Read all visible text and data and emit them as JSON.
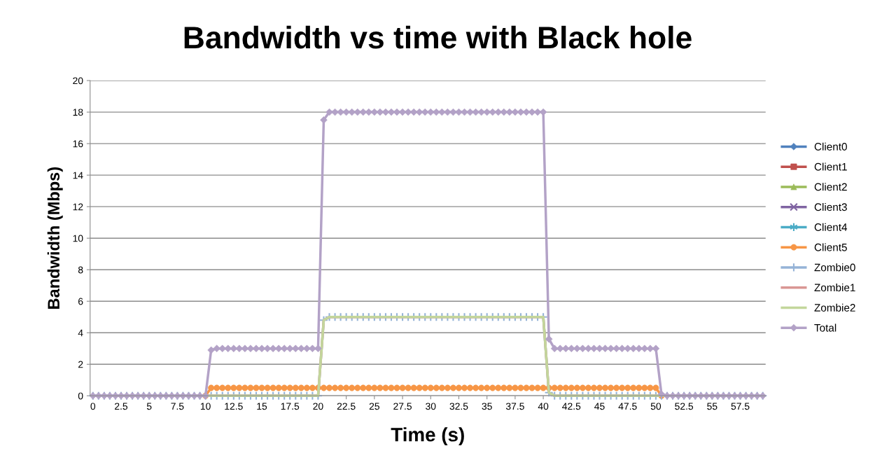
{
  "chart_data": {
    "type": "line",
    "title": "Bandwidth vs time with Black hole",
    "xlabel": "Time (s)",
    "ylabel": "Bandwidth (Mbps)",
    "categories": [
      "0",
      null,
      null,
      null,
      null,
      "2.5",
      null,
      null,
      null,
      null,
      "5",
      null,
      null,
      null,
      null,
      "7.5",
      null,
      null,
      null,
      null,
      "10",
      null,
      null,
      null,
      null,
      "12.5",
      null,
      null,
      null,
      null,
      "15",
      null,
      null,
      null,
      null,
      "17.5",
      null,
      null,
      null,
      null,
      "20",
      null,
      null,
      null,
      null,
      "22.5",
      null,
      null,
      null,
      null,
      "25",
      null,
      null,
      null,
      null,
      "27.5",
      null,
      null,
      null,
      null,
      "30",
      null,
      null,
      null,
      null,
      "32.5",
      null,
      null,
      null,
      null,
      "35",
      null,
      null,
      null,
      null,
      "37.5",
      null,
      null,
      null,
      null,
      "40",
      null,
      null,
      null,
      null,
      "42.5",
      null,
      null,
      null,
      null,
      "45",
      null,
      null,
      null,
      null,
      "47.5",
      null,
      null,
      null,
      null,
      "50",
      null,
      null,
      null,
      null,
      "52.5",
      null,
      null,
      null,
      null,
      "55",
      null,
      null,
      null,
      null,
      "57.5",
      null,
      null,
      null,
      null
    ],
    "ylim": [
      0,
      20
    ],
    "yticks": [
      0,
      2,
      4,
      6,
      8,
      10,
      12,
      14,
      16,
      18,
      20
    ],
    "grid": "y",
    "legend": "right",
    "line_style": "solid",
    "series": [
      {
        "name": "Client0",
        "color": "#4f81bd",
        "marker": "diamond",
        "values": [
          null,
          null,
          null,
          null,
          null,
          null,
          null,
          null,
          null,
          null,
          null,
          null,
          null,
          null,
          null,
          null,
          null,
          null,
          null,
          null,
          null,
          null,
          null,
          null,
          null,
          null,
          null,
          null,
          null,
          null,
          null,
          null,
          null,
          null,
          null,
          null,
          null,
          null,
          null,
          null,
          null,
          null,
          null,
          null,
          null,
          null,
          null,
          null,
          null,
          null,
          null,
          null,
          null,
          null,
          null,
          null,
          null,
          null,
          null,
          null,
          null,
          null,
          null,
          null,
          null,
          null,
          null,
          null,
          null,
          null,
          null,
          null,
          null,
          null,
          null,
          null,
          null,
          null,
          null,
          null,
          null,
          null,
          null,
          null,
          null,
          null,
          null,
          null,
          null,
          null,
          null,
          null,
          null,
          null,
          null,
          null,
          null,
          null,
          null,
          null,
          null,
          null,
          null,
          null,
          null,
          null,
          null,
          null,
          null,
          null,
          null,
          null,
          null,
          null,
          null,
          null,
          null,
          null,
          null,
          null
        ]
      },
      {
        "name": "Client1",
        "color": "#c0504d",
        "marker": "square",
        "values": [
          null,
          null,
          null,
          null,
          null,
          null,
          null,
          null,
          null,
          null,
          null,
          null,
          null,
          null,
          null,
          null,
          null,
          null,
          null,
          null,
          null,
          null,
          null,
          null,
          null,
          null,
          null,
          null,
          null,
          null,
          null,
          null,
          null,
          null,
          null,
          null,
          null,
          null,
          null,
          null,
          null,
          null,
          null,
          null,
          null,
          null,
          null,
          null,
          null,
          null,
          null,
          null,
          null,
          null,
          null,
          null,
          null,
          null,
          null,
          null,
          null,
          null,
          null,
          null,
          null,
          null,
          null,
          null,
          null,
          null,
          null,
          null,
          null,
          null,
          null,
          null,
          null,
          null,
          null,
          null,
          null,
          null,
          null,
          null,
          null,
          null,
          null,
          null,
          null,
          null,
          null,
          null,
          null,
          null,
          null,
          null,
          null,
          null,
          null,
          null,
          null,
          null,
          null,
          null,
          null,
          null,
          null,
          null,
          null,
          null,
          null,
          null,
          null,
          null,
          null,
          null,
          null,
          null,
          null,
          null
        ]
      },
      {
        "name": "Client2",
        "color": "#9bbb59",
        "marker": "triangle",
        "values": [
          null,
          null,
          null,
          null,
          null,
          null,
          null,
          null,
          null,
          null,
          null,
          null,
          null,
          null,
          null,
          null,
          null,
          null,
          null,
          null,
          null,
          null,
          null,
          null,
          null,
          null,
          null,
          null,
          null,
          null,
          null,
          null,
          null,
          null,
          null,
          null,
          null,
          null,
          null,
          null,
          null,
          null,
          null,
          null,
          null,
          null,
          null,
          null,
          null,
          null,
          null,
          null,
          null,
          null,
          null,
          null,
          null,
          null,
          null,
          null,
          null,
          null,
          null,
          null,
          null,
          null,
          null,
          null,
          null,
          null,
          null,
          null,
          null,
          null,
          null,
          null,
          null,
          null,
          null,
          null,
          null,
          null,
          null,
          null,
          null,
          null,
          null,
          null,
          null,
          null,
          null,
          null,
          null,
          null,
          null,
          null,
          null,
          null,
          null,
          null,
          null,
          null,
          null,
          null,
          null,
          null,
          null,
          null,
          null,
          null,
          null,
          null,
          null,
          null,
          null,
          null,
          null,
          null,
          null,
          null
        ]
      },
      {
        "name": "Client3",
        "color": "#8064a2",
        "marker": "cross",
        "values": [
          null,
          null,
          null,
          null,
          null,
          null,
          null,
          null,
          null,
          null,
          null,
          null,
          null,
          null,
          null,
          null,
          null,
          null,
          null,
          null,
          null,
          null,
          null,
          null,
          null,
          null,
          null,
          null,
          null,
          null,
          null,
          null,
          null,
          null,
          null,
          null,
          null,
          null,
          null,
          null,
          null,
          null,
          null,
          null,
          null,
          null,
          null,
          null,
          null,
          null,
          null,
          null,
          null,
          null,
          null,
          null,
          null,
          null,
          null,
          null,
          null,
          null,
          null,
          null,
          null,
          null,
          null,
          null,
          null,
          null,
          null,
          null,
          null,
          null,
          null,
          null,
          null,
          null,
          null,
          null,
          null,
          null,
          null,
          null,
          null,
          null,
          null,
          null,
          null,
          null,
          null,
          null,
          null,
          null,
          null,
          null,
          null,
          null,
          null,
          null,
          null,
          null,
          null,
          null,
          null,
          null,
          null,
          null,
          null,
          null,
          null,
          null,
          null,
          null,
          null,
          null,
          null,
          null,
          null,
          null
        ]
      },
      {
        "name": "Client4",
        "color": "#4bacc6",
        "marker": "star",
        "values": [
          null,
          null,
          null,
          null,
          null,
          null,
          null,
          null,
          null,
          null,
          null,
          null,
          null,
          null,
          null,
          null,
          null,
          null,
          null,
          null,
          null,
          null,
          null,
          null,
          null,
          null,
          null,
          null,
          null,
          null,
          null,
          null,
          null,
          null,
          null,
          null,
          null,
          null,
          null,
          null,
          null,
          null,
          null,
          null,
          null,
          null,
          null,
          null,
          null,
          null,
          null,
          null,
          null,
          null,
          null,
          null,
          null,
          null,
          null,
          null,
          null,
          null,
          null,
          null,
          null,
          null,
          null,
          null,
          null,
          null,
          null,
          null,
          null,
          null,
          null,
          null,
          null,
          null,
          null,
          null,
          null,
          null,
          null,
          null,
          null,
          null,
          null,
          null,
          null,
          null,
          null,
          null,
          null,
          null,
          null,
          null,
          null,
          null,
          null,
          null,
          null,
          null,
          null,
          null,
          null,
          null,
          null,
          null,
          null,
          null,
          null,
          null,
          null,
          null,
          null,
          null,
          null,
          null,
          null,
          null
        ]
      },
      {
        "name": "Client5",
        "color": "#f79646",
        "marker": "circle",
        "values": [
          null,
          null,
          null,
          null,
          null,
          null,
          null,
          null,
          null,
          null,
          null,
          null,
          null,
          null,
          null,
          null,
          null,
          null,
          null,
          null,
          0,
          0.5,
          0.5,
          0.5,
          0.5,
          0.5,
          0.5,
          0.5,
          0.5,
          0.5,
          0.5,
          0.5,
          0.5,
          0.5,
          0.5,
          0.5,
          0.5,
          0.5,
          0.5,
          0.5,
          0.5,
          0.5,
          0.5,
          0.5,
          0.5,
          0.5,
          0.5,
          0.5,
          0.5,
          0.5,
          0.5,
          0.5,
          0.5,
          0.5,
          0.5,
          0.5,
          0.5,
          0.5,
          0.5,
          0.5,
          0.5,
          0.5,
          0.5,
          0.5,
          0.5,
          0.5,
          0.5,
          0.5,
          0.5,
          0.5,
          0.5,
          0.5,
          0.5,
          0.5,
          0.5,
          0.5,
          0.5,
          0.5,
          0.5,
          0.5,
          0.5,
          0.5,
          0.5,
          0.5,
          0.5,
          0.5,
          0.5,
          0.5,
          0.5,
          0.5,
          0.5,
          0.5,
          0.5,
          0.5,
          0.5,
          0.5,
          0.5,
          0.5,
          0.5,
          0.5,
          0.5,
          0,
          null,
          null,
          null,
          null,
          null,
          null,
          null,
          null,
          null,
          null,
          null,
          null,
          null,
          null,
          null,
          null,
          null,
          null
        ]
      },
      {
        "name": "Zombie0",
        "color": "#95b3d7",
        "marker": "plus",
        "values": [
          0,
          0,
          0,
          0,
          0,
          0,
          0,
          0,
          0,
          0,
          0,
          0,
          0,
          0,
          0,
          0,
          0,
          0,
          0,
          0,
          0,
          0,
          0,
          0,
          0,
          0,
          0,
          0,
          0,
          0,
          0,
          0,
          0,
          0,
          0,
          0,
          0,
          0,
          0,
          0,
          0,
          4.8,
          5,
          5,
          5,
          5,
          5,
          5,
          5,
          5,
          5,
          5,
          5,
          5,
          5,
          5,
          5,
          5,
          5,
          5,
          5,
          5,
          5,
          5,
          5,
          5,
          5,
          5,
          5,
          5,
          5,
          5,
          5,
          5,
          5,
          5,
          5,
          5,
          5,
          5,
          5,
          0.2,
          0,
          0,
          0,
          0,
          0,
          0,
          0,
          0,
          0,
          0,
          0,
          0,
          0,
          0,
          0,
          0,
          0,
          0,
          0,
          0,
          0,
          0,
          0,
          0,
          0,
          0,
          0,
          0,
          0,
          0,
          0,
          0,
          0,
          0,
          0,
          0,
          0,
          0
        ]
      },
      {
        "name": "Zombie1",
        "color": "#d99694",
        "marker": "none",
        "values": [
          null,
          null,
          null,
          null,
          null,
          null,
          null,
          null,
          null,
          null,
          null,
          null,
          null,
          null,
          null,
          null,
          null,
          null,
          0,
          0,
          0,
          0,
          0,
          0,
          0,
          0,
          0,
          0,
          0,
          0,
          0,
          0,
          0,
          0,
          0,
          0,
          0,
          0,
          0,
          0,
          0,
          4.8,
          5,
          5,
          5,
          5,
          5,
          5,
          5,
          5,
          5,
          5,
          5,
          5,
          5,
          5,
          5,
          5,
          5,
          5,
          5,
          5,
          5,
          5,
          5,
          5,
          5,
          5,
          5,
          5,
          5,
          5,
          5,
          5,
          5,
          5,
          5,
          5,
          5,
          5,
          5,
          0.2,
          0,
          0,
          0,
          0,
          0,
          0,
          0,
          0,
          0,
          0,
          0,
          0,
          0,
          0,
          0,
          0,
          0,
          0,
          0,
          0,
          0,
          0,
          0,
          0,
          0,
          0,
          0,
          0,
          0,
          0,
          0,
          0,
          0,
          0,
          0,
          0,
          null,
          null
        ]
      },
      {
        "name": "Zombie2",
        "color": "#c3d69b",
        "marker": "none",
        "values": [
          null,
          null,
          null,
          null,
          null,
          null,
          null,
          null,
          null,
          null,
          null,
          null,
          null,
          null,
          null,
          null,
          null,
          null,
          null,
          0,
          0,
          0,
          0,
          0,
          0,
          0,
          0,
          0,
          0,
          0,
          0,
          0,
          0,
          0,
          0,
          0,
          0,
          0,
          0,
          0,
          0,
          4.8,
          5,
          5,
          5,
          5,
          5,
          5,
          5,
          5,
          5,
          5,
          5,
          5,
          5,
          5,
          5,
          5,
          5,
          5,
          5,
          5,
          5,
          5,
          5,
          5,
          5,
          5,
          5,
          5,
          5,
          5,
          5,
          5,
          5,
          5,
          5,
          5,
          5,
          5,
          5,
          0.2,
          0,
          0,
          0,
          0,
          0,
          0,
          0,
          0,
          0,
          0,
          0,
          0,
          0,
          0,
          0,
          0,
          0,
          0,
          0,
          0,
          0,
          0,
          null,
          null,
          null,
          null,
          null,
          null,
          null,
          null,
          null,
          null,
          null,
          null,
          null,
          null,
          null,
          null
        ]
      },
      {
        "name": "Total",
        "color": "#b3a2c7",
        "marker": "diamond",
        "values": [
          0,
          0,
          0,
          0,
          0,
          0,
          0,
          0,
          0,
          0,
          0,
          0,
          0,
          0,
          0,
          0,
          0,
          0,
          0,
          0,
          0,
          2.9,
          3,
          3,
          3,
          3,
          3,
          3,
          3,
          3,
          3,
          3,
          3,
          3,
          3,
          3,
          3,
          3,
          3,
          3,
          3,
          17.5,
          18,
          18,
          18,
          18,
          18,
          18,
          18,
          18,
          18,
          18,
          18,
          18,
          18,
          18,
          18,
          18,
          18,
          18,
          18,
          18,
          18,
          18,
          18,
          18,
          18,
          18,
          18,
          18,
          18,
          18,
          18,
          18,
          18,
          18,
          18,
          18,
          18,
          18,
          18,
          3.6,
          3,
          3,
          3,
          3,
          3,
          3,
          3,
          3,
          3,
          3,
          3,
          3,
          3,
          3,
          3,
          3,
          3,
          3,
          3,
          0.1,
          0,
          0,
          0,
          0,
          0,
          0,
          0,
          0,
          0,
          0,
          0,
          0,
          0,
          0,
          0,
          0,
          0,
          0
        ]
      }
    ]
  }
}
